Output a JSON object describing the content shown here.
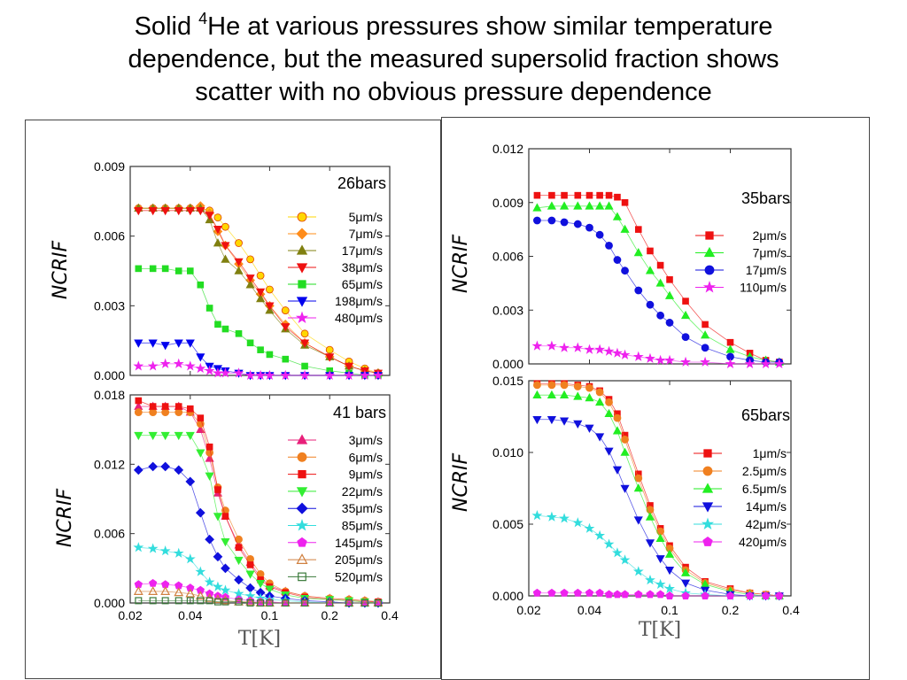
{
  "title": {
    "line1_pre": "Solid ",
    "sup": "4",
    "line1_post": "He at various pressures show similar temperature",
    "line2": "dependence, but the measured supersolid fraction shows",
    "line3": "scatter with no obvious pressure dependence"
  },
  "chart_data": [
    {
      "type": "scatter",
      "title": "26bars",
      "ylabel": "NCRIF",
      "xlabel": "",
      "xscale": "log",
      "xlim": [
        0.02,
        0.4
      ],
      "ylim": [
        0,
        0.009
      ],
      "yticks": [
        "0.000",
        "0.003",
        "0.006",
        "0.009"
      ],
      "xticks": [],
      "x": [
        0.022,
        0.026,
        0.03,
        0.035,
        0.04,
        0.045,
        0.05,
        0.055,
        0.06,
        0.07,
        0.08,
        0.09,
        0.1,
        0.12,
        0.15,
        0.2,
        0.25,
        0.3,
        0.35
      ],
      "series": [
        {
          "name": "5μm/s",
          "marker": "circle",
          "color": "#ffd700",
          "edge": "#e04000",
          "y": [
            0.0072,
            0.0072,
            0.0072,
            0.0072,
            0.0072,
            0.0072,
            0.0071,
            0.0068,
            0.0064,
            0.0057,
            0.005,
            0.0043,
            0.0037,
            0.0028,
            0.0018,
            0.0011,
            0.0006,
            0.0003,
            0.0001
          ]
        },
        {
          "name": "7μm/s",
          "marker": "diamond",
          "color": "#ff8c1a",
          "y": [
            0.0072,
            0.0072,
            0.0072,
            0.0072,
            0.0072,
            0.0073,
            0.007,
            0.0062,
            0.0056,
            0.0048,
            0.0041,
            0.0035,
            0.003,
            0.0022,
            0.0014,
            0.0008,
            0.0004,
            0.0002,
            0.0001
          ]
        },
        {
          "name": "17μm/s",
          "marker": "triangle-up",
          "color": "#808010",
          "y": [
            0.0072,
            0.0072,
            0.0072,
            0.0072,
            0.0072,
            0.0072,
            0.0067,
            0.0057,
            0.005,
            0.0045,
            0.0039,
            0.0033,
            0.0028,
            0.002,
            0.0013,
            0.0008,
            0.0004,
            0.0002,
            0.0001
          ]
        },
        {
          "name": "38μm/s",
          "marker": "triangle-down",
          "color": "#ee1111",
          "y": [
            0.0071,
            0.0071,
            0.0071,
            0.0071,
            0.0071,
            0.0071,
            0.0069,
            0.0063,
            0.0056,
            0.0049,
            0.0042,
            0.0036,
            0.003,
            0.0021,
            0.0014,
            0.0008,
            0.0004,
            0.0002,
            0.0001
          ]
        },
        {
          "name": "65μm/s",
          "marker": "square",
          "color": "#22dd22",
          "y": [
            0.0046,
            0.0046,
            0.0046,
            0.0045,
            0.0045,
            0.0039,
            0.0029,
            0.0022,
            0.002,
            0.0018,
            0.0014,
            0.0011,
            0.0009,
            0.0007,
            0.0004,
            0.0002,
            0.0001,
            0,
            0
          ]
        },
        {
          "name": "198μm/s",
          "marker": "triangle-down",
          "color": "#0000ee",
          "y": [
            0.0014,
            0.0014,
            0.0013,
            0.0014,
            0.0014,
            0.0008,
            0.0004,
            0.0003,
            0.0002,
            0.0001,
            0,
            0,
            0,
            0,
            0,
            0,
            0,
            0,
            0
          ]
        },
        {
          "name": "480μm/s",
          "marker": "star",
          "color": "#ee22ee",
          "y": [
            0.0004,
            0.0004,
            0.0005,
            0.0005,
            0.0004,
            0.0003,
            0.0002,
            0.0001,
            0.0001,
            0.0001,
            0,
            0,
            0,
            0,
            0,
            0,
            0,
            0,
            0
          ]
        }
      ]
    },
    {
      "type": "scatter",
      "title": "41 bars",
      "ylabel": "NCRIF",
      "xlabel": "T[K]",
      "xscale": "log",
      "xlim": [
        0.02,
        0.4
      ],
      "ylim": [
        0,
        0.018
      ],
      "yticks": [
        "0.000",
        "0.006",
        "0.012",
        "0.018"
      ],
      "xticks": [
        "0.02",
        "0.04",
        "0.1",
        "0.2",
        "0.4"
      ],
      "x": [
        0.022,
        0.026,
        0.03,
        0.035,
        0.04,
        0.045,
        0.05,
        0.055,
        0.06,
        0.07,
        0.08,
        0.09,
        0.1,
        0.12,
        0.15,
        0.2,
        0.25,
        0.3,
        0.35
      ],
      "series": [
        {
          "name": "3μm/s",
          "marker": "triangle-up",
          "color": "#e8207a",
          "y": [
            0.017,
            0.017,
            0.017,
            0.017,
            0.0165,
            0.015,
            0.0125,
            0.0095,
            0.0075,
            0.005,
            0.0035,
            0.0022,
            0.0015,
            0.001,
            0.0006,
            0.0004,
            0.0003,
            0.0002,
            0.0001
          ]
        },
        {
          "name": "6μm/s",
          "marker": "circle",
          "color": "#f08020",
          "y": [
            0.0165,
            0.0165,
            0.0165,
            0.0165,
            0.0165,
            0.0155,
            0.013,
            0.01,
            0.008,
            0.0055,
            0.0038,
            0.0025,
            0.0017,
            0.001,
            0.0006,
            0.0004,
            0.0003,
            0.0002,
            0.0001
          ]
        },
        {
          "name": "9μm/s",
          "marker": "square",
          "color": "#ee1111",
          "y": [
            0.0175,
            0.017,
            0.017,
            0.017,
            0.0168,
            0.016,
            0.0135,
            0.0098,
            0.0075,
            0.0048,
            0.0033,
            0.002,
            0.0014,
            0.0009,
            0.0005,
            0.0003,
            0.0002,
            0.0001,
            0.0001
          ]
        },
        {
          "name": "22μm/s",
          "marker": "triangle-down",
          "color": "#33ee33",
          "y": [
            0.0145,
            0.0145,
            0.0145,
            0.0145,
            0.0145,
            0.013,
            0.011,
            0.0075,
            0.0053,
            0.0037,
            0.0025,
            0.0017,
            0.0012,
            0.0007,
            0.0004,
            0.0003,
            0.0002,
            0.0001,
            0
          ]
        },
        {
          "name": "35μm/s",
          "marker": "diamond",
          "color": "#1010dd",
          "y": [
            0.0115,
            0.0118,
            0.0118,
            0.0115,
            0.0105,
            0.0078,
            0.0055,
            0.004,
            0.003,
            0.002,
            0.0013,
            0.0009,
            0.0006,
            0.0004,
            0.0002,
            0.0001,
            0,
            0,
            0
          ]
        },
        {
          "name": "85μm/s",
          "marker": "star",
          "color": "#33dddd",
          "y": [
            0.0048,
            0.0047,
            0.0045,
            0.0043,
            0.0038,
            0.0027,
            0.0018,
            0.0014,
            0.0011,
            0.0008,
            0.0006,
            0.0004,
            0.0003,
            0.0002,
            0.0001,
            0,
            0,
            0,
            0
          ]
        },
        {
          "name": "145μm/s",
          "marker": "pentagon",
          "color": "#ee22ee",
          "y": [
            0.0016,
            0.0017,
            0.0016,
            0.0015,
            0.0013,
            0.0011,
            0.0008,
            0.0006,
            0.0005,
            0.0003,
            0.0002,
            0.0001,
            0.0001,
            0,
            0,
            0,
            0,
            0,
            0
          ]
        },
        {
          "name": "205μm/s",
          "marker": "triangle-up-open",
          "color": "#d08040",
          "y": [
            0.001,
            0.001,
            0.001,
            0.0009,
            0.0008,
            0.0006,
            0.0004,
            0.0003,
            0.0002,
            0.0001,
            0.0001,
            0,
            0,
            0,
            0,
            0,
            0,
            0,
            0
          ]
        },
        {
          "name": "520μm/s",
          "marker": "square-open",
          "color": "#3a7a3a",
          "y": [
            0.0002,
            0.0002,
            0.0002,
            0.0002,
            0.0002,
            0.0002,
            0.0002,
            0.0001,
            0.0001,
            0.0001,
            0,
            0,
            0,
            0,
            0,
            0,
            0,
            0,
            0
          ]
        }
      ]
    },
    {
      "type": "scatter",
      "title": "35bars",
      "ylabel": "NCRIF",
      "xlabel": "",
      "xscale": "log",
      "xlim": [
        0.02,
        0.4
      ],
      "ylim": [
        0,
        0.012
      ],
      "yticks": [
        "0.000",
        "0.003",
        "0.006",
        "0.009",
        "0.012"
      ],
      "xticks": [],
      "x": [
        0.022,
        0.026,
        0.03,
        0.035,
        0.04,
        0.045,
        0.05,
        0.055,
        0.06,
        0.07,
        0.08,
        0.09,
        0.1,
        0.12,
        0.15,
        0.2,
        0.25,
        0.3,
        0.35
      ],
      "series": [
        {
          "name": "2μm/s",
          "marker": "square",
          "color": "#ee1111",
          "y": [
            0.0094,
            0.0094,
            0.0094,
            0.0094,
            0.0094,
            0.0094,
            0.0094,
            0.0093,
            0.009,
            0.0075,
            0.0063,
            0.0055,
            0.0047,
            0.0035,
            0.0022,
            0.0012,
            0.0006,
            0.0002,
            0.0001
          ]
        },
        {
          "name": "7μm/s",
          "marker": "triangle-up",
          "color": "#22ee22",
          "y": [
            0.0087,
            0.0088,
            0.0088,
            0.0088,
            0.0088,
            0.0088,
            0.0088,
            0.0082,
            0.0075,
            0.0062,
            0.0052,
            0.0045,
            0.0038,
            0.0027,
            0.0016,
            0.0008,
            0.0004,
            0.0002,
            0.0001
          ]
        },
        {
          "name": "17μm/s",
          "marker": "circle",
          "color": "#1010dd",
          "y": [
            0.008,
            0.008,
            0.0079,
            0.0078,
            0.0076,
            0.0072,
            0.0066,
            0.0058,
            0.0052,
            0.0041,
            0.0033,
            0.0027,
            0.0023,
            0.0015,
            0.0009,
            0.0004,
            0.0002,
            0.0001,
            0.0001
          ]
        },
        {
          "name": "110μm/s",
          "marker": "star",
          "color": "#ee22ee",
          "y": [
            0.001,
            0.001,
            0.0009,
            0.0009,
            0.0008,
            0.0008,
            0.0007,
            0.0006,
            0.0005,
            0.0004,
            0.0003,
            0.0002,
            0.0002,
            0.0001,
            0.0001,
            0,
            0,
            0,
            0
          ]
        }
      ]
    },
    {
      "type": "scatter",
      "title": "65bars",
      "ylabel": "NCRIF",
      "xlabel": "T[K]",
      "xscale": "log",
      "xlim": [
        0.02,
        0.4
      ],
      "ylim": [
        0,
        0.015
      ],
      "yticks": [
        "0.000",
        "0.005",
        "0.010",
        "0.015"
      ],
      "xticks": [
        "0.02",
        "0.04",
        "0.1",
        "0.2",
        "0.4"
      ],
      "x": [
        0.022,
        0.026,
        0.03,
        0.035,
        0.04,
        0.045,
        0.05,
        0.055,
        0.06,
        0.07,
        0.08,
        0.09,
        0.1,
        0.12,
        0.15,
        0.2,
        0.25,
        0.3,
        0.35
      ],
      "series": [
        {
          "name": "1μm/s",
          "marker": "square",
          "color": "#ee1111",
          "y": [
            0.0148,
            0.0148,
            0.0148,
            0.0147,
            0.0146,
            0.0143,
            0.0137,
            0.0127,
            0.0112,
            0.0085,
            0.0063,
            0.0047,
            0.0035,
            0.002,
            0.001,
            0.0005,
            0.0002,
            0.0001,
            0
          ]
        },
        {
          "name": "2.5μm/s",
          "marker": "circle",
          "color": "#f08020",
          "y": [
            0.0147,
            0.0147,
            0.0147,
            0.0146,
            0.0145,
            0.0142,
            0.0135,
            0.0124,
            0.0109,
            0.0082,
            0.006,
            0.0045,
            0.0033,
            0.0018,
            0.0009,
            0.0004,
            0.0002,
            0.0001,
            0
          ]
        },
        {
          "name": "6.5μm/s",
          "marker": "triangle-up",
          "color": "#22ee22",
          "y": [
            0.014,
            0.014,
            0.014,
            0.0139,
            0.0138,
            0.0135,
            0.0127,
            0.0115,
            0.01,
            0.0075,
            0.0055,
            0.004,
            0.0029,
            0.0016,
            0.0008,
            0.0003,
            0.0001,
            0,
            0
          ]
        },
        {
          "name": "14μm/s",
          "marker": "triangle-down",
          "color": "#1010dd",
          "y": [
            0.0123,
            0.0123,
            0.0122,
            0.012,
            0.0117,
            0.0111,
            0.0101,
            0.0088,
            0.0075,
            0.0053,
            0.0037,
            0.0026,
            0.0018,
            0.0009,
            0.0004,
            0.0001,
            0,
            0,
            0
          ]
        },
        {
          "name": "42μm/s",
          "marker": "star",
          "color": "#33dddd",
          "y": [
            0.0056,
            0.0055,
            0.0054,
            0.0051,
            0.0047,
            0.0042,
            0.0036,
            0.003,
            0.0025,
            0.0017,
            0.0011,
            0.0008,
            0.0005,
            0.0002,
            0.0001,
            0,
            0,
            0,
            0
          ]
        },
        {
          "name": "420μm/s",
          "marker": "pentagon",
          "color": "#ee22ee",
          "y": [
            0.0002,
            0.0002,
            0.0002,
            0.0002,
            0.0002,
            0.0002,
            0.0001,
            0.0001,
            0.0001,
            0.0001,
            0.0001,
            0.0001,
            0,
            0,
            0,
            0,
            0,
            0,
            0
          ]
        }
      ]
    }
  ]
}
